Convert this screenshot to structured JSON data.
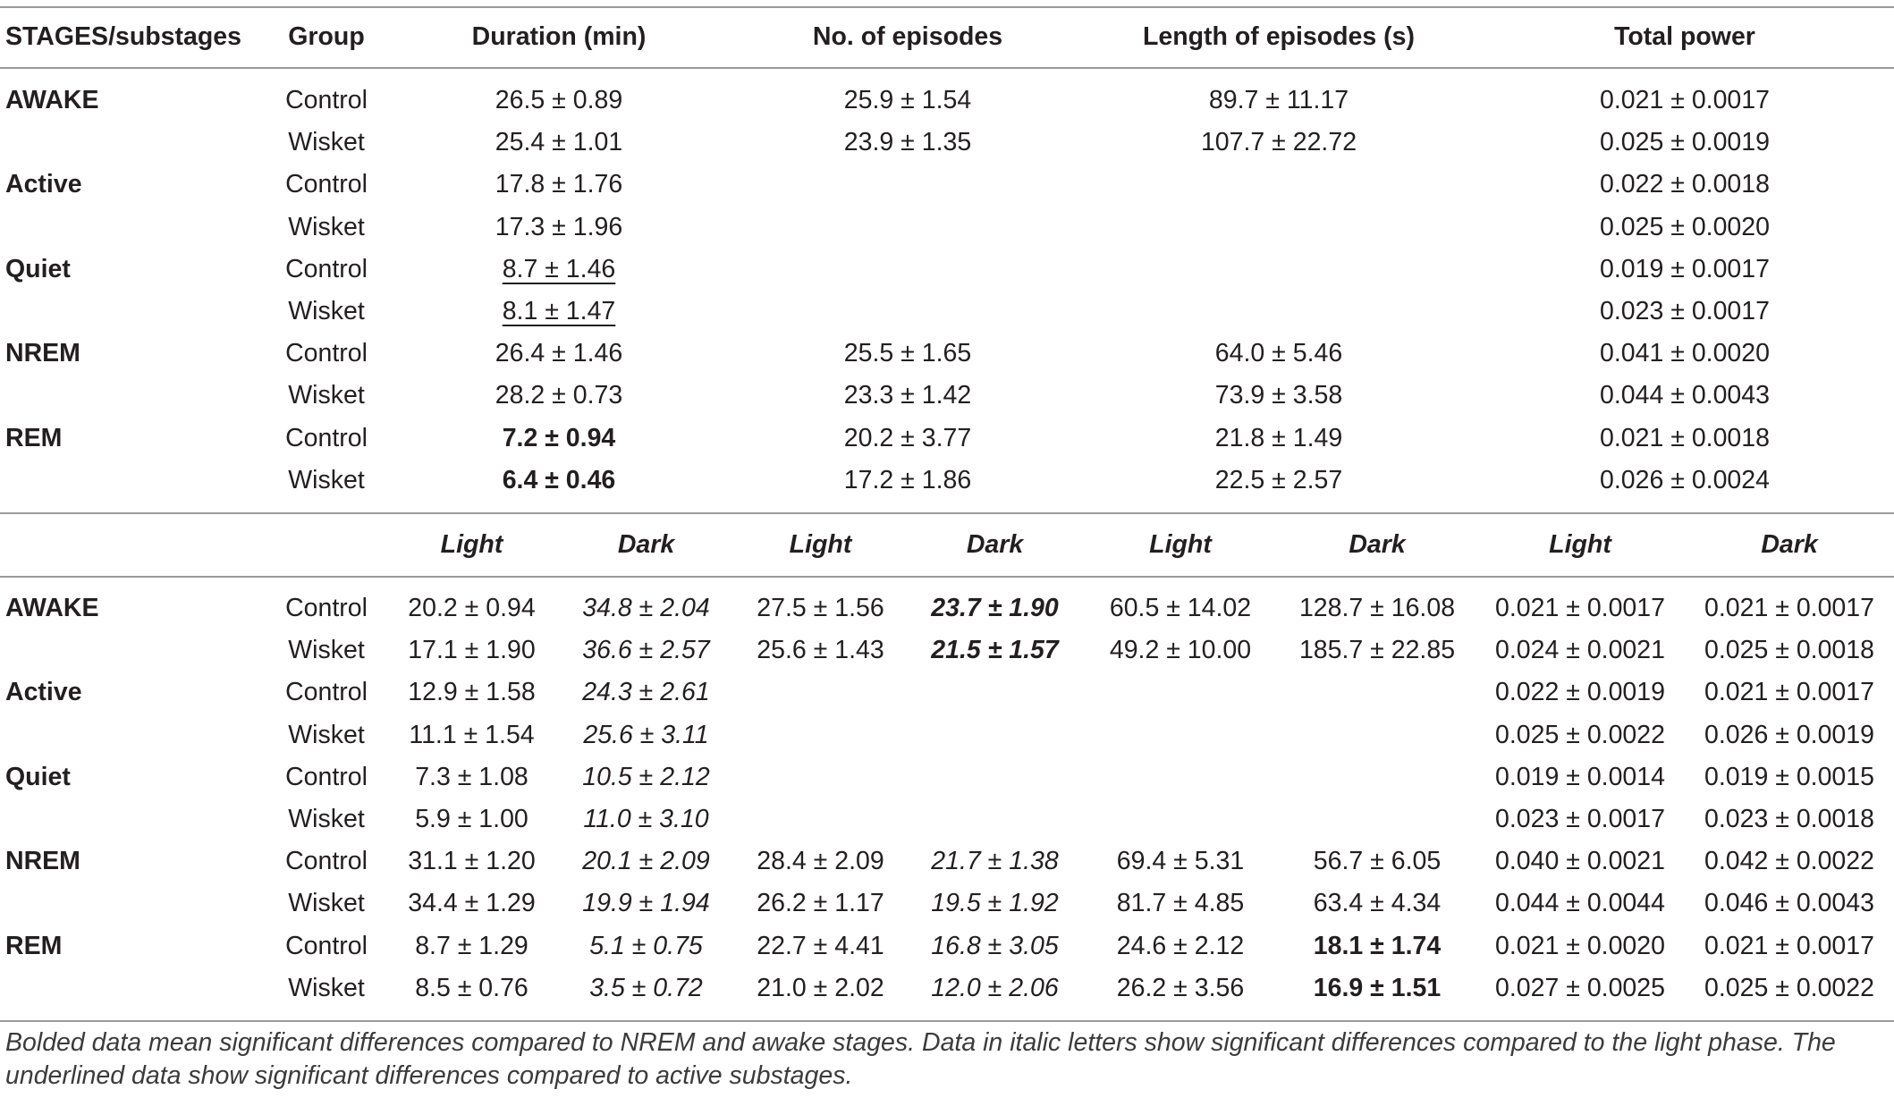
{
  "header": {
    "stage": "STAGES/substages",
    "group": "Group",
    "duration": "Duration (min)",
    "episodes": "No. of episodes",
    "length": "Length of episodes (s)",
    "power": "Total power"
  },
  "phase_header": [
    "Light",
    "Dark",
    "Light",
    "Dark",
    "Light",
    "Dark",
    "Light",
    "Dark"
  ],
  "overall_rows": [
    {
      "stage": "AWAKE",
      "group": "Control",
      "duration": "26.5 ± 0.89",
      "duration_style": "",
      "episodes": "25.9 ± 1.54",
      "length": "89.7 ± 11.17",
      "power": "0.021 ± 0.0017"
    },
    {
      "stage": "",
      "group": "Wisket",
      "duration": "25.4 ± 1.01",
      "duration_style": "",
      "episodes": "23.9 ± 1.35",
      "length": "107.7 ± 22.72",
      "power": "0.025 ± 0.0019"
    },
    {
      "stage": "Active",
      "group": "Control",
      "duration": "17.8 ± 1.76",
      "duration_style": "",
      "episodes": "",
      "length": "",
      "power": "0.022 ± 0.0018"
    },
    {
      "stage": "",
      "group": "Wisket",
      "duration": "17.3 ± 1.96",
      "duration_style": "",
      "episodes": "",
      "length": "",
      "power": "0.025 ± 0.0020"
    },
    {
      "stage": "Quiet",
      "group": "Control",
      "duration": "8.7 ± 1.46",
      "duration_style": "u",
      "episodes": "",
      "length": "",
      "power": "0.019 ± 0.0017"
    },
    {
      "stage": "",
      "group": "Wisket",
      "duration": "8.1 ± 1.47",
      "duration_style": "u",
      "episodes": "",
      "length": "",
      "power": "0.023 ± 0.0017"
    },
    {
      "stage": "NREM",
      "group": "Control",
      "duration": "26.4 ± 1.46",
      "duration_style": "",
      "episodes": "25.5 ± 1.65",
      "length": "64.0 ± 5.46",
      "power": "0.041 ± 0.0020"
    },
    {
      "stage": "",
      "group": "Wisket",
      "duration": "28.2 ± 0.73",
      "duration_style": "",
      "episodes": "23.3 ± 1.42",
      "length": "73.9 ± 3.58",
      "power": "0.044 ± 0.0043"
    },
    {
      "stage": "REM",
      "group": "Control",
      "duration": "7.2 ± 0.94",
      "duration_style": "b",
      "episodes": "20.2 ± 3.77",
      "length": "21.8 ± 1.49",
      "power": "0.021 ± 0.0018"
    },
    {
      "stage": "",
      "group": "Wisket",
      "duration": "6.4 ± 0.46",
      "duration_style": "b",
      "episodes": "17.2 ± 1.86",
      "length": "22.5 ± 2.57",
      "power": "0.026 ± 0.0024"
    }
  ],
  "phase_rows": [
    {
      "stage": "AWAKE",
      "group": "Control",
      "values": [
        "20.2 ± 0.94",
        "34.8 ± 2.04",
        "27.5 ± 1.56",
        "23.7 ± 1.90",
        "60.5 ± 14.02",
        "128.7 ± 16.08",
        "0.021 ± 0.0017",
        "0.021 ± 0.0017"
      ],
      "styles": [
        "",
        "it",
        "",
        "b it",
        "",
        "",
        "",
        ""
      ]
    },
    {
      "stage": "",
      "group": "Wisket",
      "values": [
        "17.1 ± 1.90",
        "36.6 ± 2.57",
        "25.6 ± 1.43",
        "21.5 ± 1.57",
        "49.2 ± 10.00",
        "185.7 ± 22.85",
        "0.024 ± 0.0021",
        "0.025 ± 0.0018"
      ],
      "styles": [
        "",
        "it",
        "",
        "b it",
        "",
        "",
        "",
        ""
      ]
    },
    {
      "stage": "Active",
      "group": "Control",
      "values": [
        "12.9 ± 1.58",
        "24.3 ± 2.61",
        "",
        "",
        "",
        "",
        "0.022 ± 0.0019",
        "0.021 ± 0.0017"
      ],
      "styles": [
        "",
        "it",
        "",
        "",
        "",
        "",
        "",
        ""
      ]
    },
    {
      "stage": "",
      "group": "Wisket",
      "values": [
        "11.1 ± 1.54",
        "25.6 ± 3.11",
        "",
        "",
        "",
        "",
        "0.025 ± 0.0022",
        "0.026 ± 0.0019"
      ],
      "styles": [
        "",
        "it",
        "",
        "",
        "",
        "",
        "",
        ""
      ]
    },
    {
      "stage": "Quiet",
      "group": "Control",
      "values": [
        "7.3 ± 1.08",
        "10.5 ± 2.12",
        "",
        "",
        "",
        "",
        "0.019 ± 0.0014",
        "0.019 ± 0.0015"
      ],
      "styles": [
        "",
        "it",
        "",
        "",
        "",
        "",
        "",
        ""
      ]
    },
    {
      "stage": "",
      "group": "Wisket",
      "values": [
        "5.9 ± 1.00",
        "11.0 ± 3.10",
        "",
        "",
        "",
        "",
        "0.023 ± 0.0017",
        "0.023 ± 0.0018"
      ],
      "styles": [
        "",
        "it",
        "",
        "",
        "",
        "",
        "",
        ""
      ]
    },
    {
      "stage": "NREM",
      "group": "Control",
      "values": [
        "31.1 ± 1.20",
        "20.1 ± 2.09",
        "28.4 ± 2.09",
        "21.7 ± 1.38",
        "69.4 ± 5.31",
        "56.7 ± 6.05",
        "0.040 ± 0.0021",
        "0.042 ± 0.0022"
      ],
      "styles": [
        "",
        "it",
        "",
        "it",
        "",
        "",
        "",
        ""
      ]
    },
    {
      "stage": "",
      "group": "Wisket",
      "values": [
        "34.4 ± 1.29",
        "19.9 ± 1.94",
        "26.2 ± 1.17",
        "19.5 ± 1.92",
        "81.7 ± 4.85",
        "63.4 ± 4.34",
        "0.044 ± 0.0044",
        "0.046 ± 0.0043"
      ],
      "styles": [
        "",
        "it",
        "",
        "it",
        "",
        "",
        "",
        ""
      ]
    },
    {
      "stage": "REM",
      "group": "Control",
      "values": [
        "8.7 ± 1.29",
        "5.1 ± 0.75",
        "22.7 ± 4.41",
        "16.8 ± 3.05",
        "24.6 ± 2.12",
        "18.1 ± 1.74",
        "0.021 ± 0.0020",
        "0.021 ± 0.0017"
      ],
      "styles": [
        "",
        "it",
        "",
        "it",
        "",
        "b",
        "",
        ""
      ]
    },
    {
      "stage": "",
      "group": "Wisket",
      "values": [
        "8.5 ± 0.76",
        "3.5 ± 0.72",
        "21.0 ± 2.02",
        "12.0 ± 2.06",
        "26.2 ± 3.56",
        "16.9 ± 1.51",
        "0.027 ± 0.0025",
        "0.025 ± 0.0022"
      ],
      "styles": [
        "",
        "it",
        "",
        "it",
        "",
        "b",
        "",
        ""
      ]
    }
  ],
  "footnote": "Bolded data mean significant differences compared to NREM and awake stages. Data in italic letters show significant differences compared to the light phase. The underlined data show significant differences compared to active substages."
}
